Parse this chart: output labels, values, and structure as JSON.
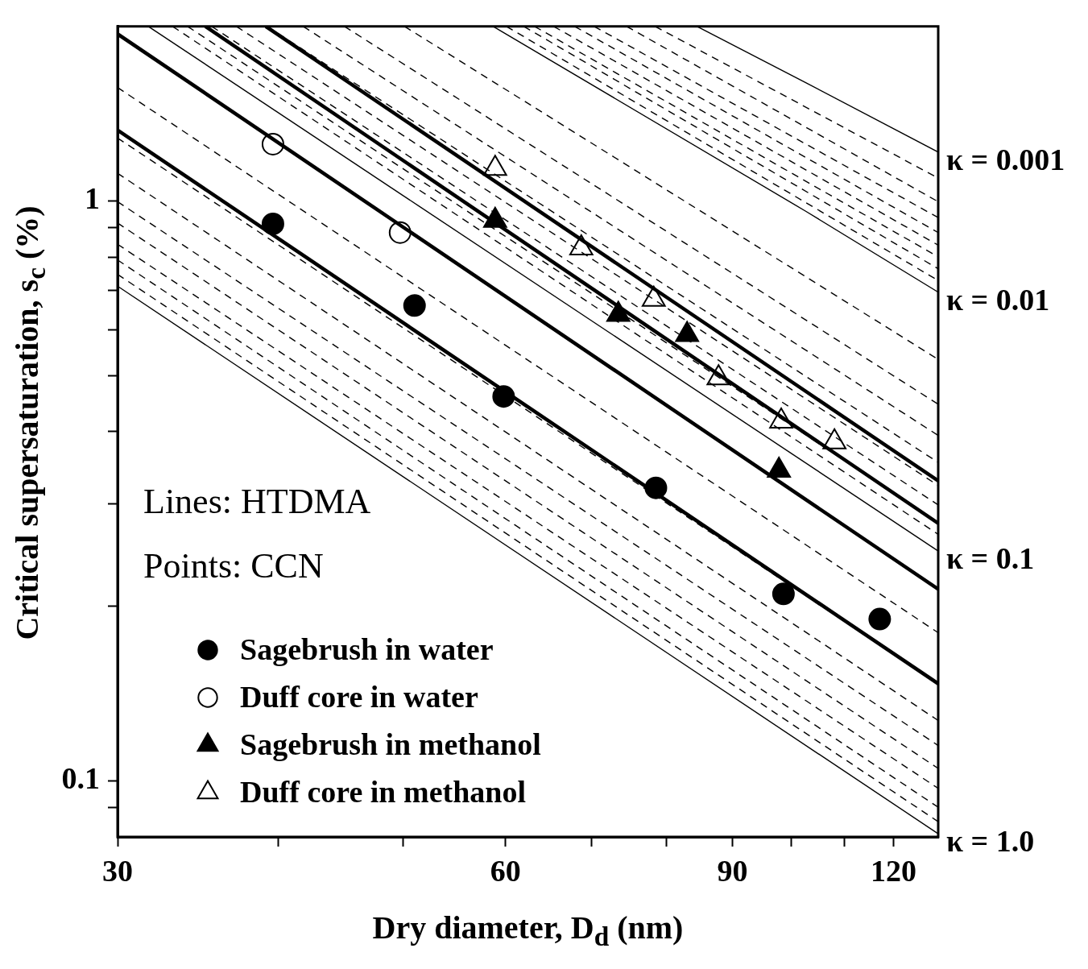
{
  "chart_data": {
    "type": "line",
    "xlabel": "Dry diameter, D$_{d}$ (nm)",
    "ylabel": "Critical supersaturation, s$_{c}$ (%)",
    "annotations": [
      "Lines: HTDMA",
      "Points: CCN"
    ],
    "log": "xy",
    "xlim": [
      30,
      130
    ],
    "ylim": [
      0.08,
      2
    ],
    "xticks": [
      30,
      {
        "value": 40,
        "label": null
      },
      {
        "value": 50,
        "label": null
      },
      60,
      {
        "value": 70,
        "label": null
      },
      {
        "value": 80,
        "label": null
      },
      90,
      {
        "value": 100,
        "label": null
      },
      {
        "value": 110,
        "label": null
      },
      120
    ],
    "yticks": [
      {
        "value": 0.09,
        "label": null
      },
      0.1,
      {
        "value": 0.2,
        "label": null
      },
      {
        "value": 0.3,
        "label": null
      },
      {
        "value": 0.4,
        "label": null
      },
      {
        "value": 0.5,
        "label": null
      },
      {
        "value": 0.6,
        "label": null
      },
      {
        "value": 0.7,
        "label": null
      },
      {
        "value": 0.8,
        "label": null
      },
      {
        "value": 0.9,
        "label": null
      },
      1
    ],
    "legend": "bottom left",
    "marker": "none",
    "series": [
      {
        "type": "line",
        "name": "κ = 0.001",
        "color": "#000000",
        "line_style": "solid",
        "x": [
          84.5,
          102.6,
          130
        ],
        "values": [
          2,
          1.6,
          1.214
        ]
      },
      {
        "type": "line",
        "name": "κ = 0.01",
        "color": "#000000",
        "line_style": "solid",
        "x": [
          58.7,
          102.6,
          130
        ],
        "values": [
          2,
          0.96,
          0.696
        ]
      },
      {
        "type": "line",
        "name": "κ = 0.1",
        "color": "#000000",
        "line_style": "solid",
        "x": [
          31.7,
          130
        ],
        "values": [
          2,
          0.249
        ]
      },
      {
        "type": "line",
        "name": "κ = 1.0",
        "color": "#000000",
        "line_style": "solid",
        "x": [
          30,
          130
        ],
        "values": [
          0.713,
          0.081
        ]
      },
      {
        "type": "line",
        "color": "#000000",
        "line_style": "dashed",
        "x": [
          78.4,
          130
        ],
        "values": [
          2,
          1.095
        ]
      },
      {
        "type": "line",
        "color": "#000000",
        "line_style": "dashed",
        "x": [
          74.5,
          130
        ],
        "values": [
          2,
          0.997
        ]
      },
      {
        "type": "line",
        "color": "#000000",
        "line_style": "dashed",
        "x": [
          70.3,
          130
        ],
        "values": [
          2,
          0.936
        ]
      },
      {
        "type": "line",
        "color": "#000000",
        "line_style": "dashed",
        "x": [
          67.9,
          130
        ],
        "values": [
          2,
          0.882
        ]
      },
      {
        "type": "line",
        "color": "#000000",
        "line_style": "dashed",
        "x": [
          65.4,
          130
        ],
        "values": [
          2,
          0.839
        ]
      },
      {
        "type": "line",
        "color": "#000000",
        "line_style": "dashed",
        "x": [
          63.2,
          130
        ],
        "values": [
          2,
          0.801
        ]
      },
      {
        "type": "line",
        "color": "#000000",
        "line_style": "dashed",
        "x": [
          62,
          130
        ],
        "values": [
          2,
          0.764
        ]
      },
      {
        "type": "line",
        "color": "#000000",
        "line_style": "dashed",
        "x": [
          60.1,
          130
        ],
        "values": [
          2,
          0.729
        ]
      },
      {
        "type": "line",
        "color": "#000000",
        "line_style": "dashed",
        "x": [
          50.1,
          130
        ],
        "values": [
          2,
          0.533
        ]
      },
      {
        "type": "line",
        "color": "#000000",
        "line_style": "dashed",
        "x": [
          45,
          130
        ],
        "values": [
          2,
          0.446
        ]
      },
      {
        "type": "line",
        "color": "#000000",
        "line_style": "dashed",
        "x": [
          41.8,
          130
        ],
        "values": [
          2,
          0.394
        ]
      },
      {
        "type": "line",
        "color": "#000000",
        "line_style": "dashed",
        "x": [
          39.2,
          130
        ],
        "values": [
          2,
          0.354
        ]
      },
      {
        "type": "line",
        "color": "#000000",
        "line_style": "dashed",
        "x": [
          37.1,
          130
        ],
        "values": [
          2,
          0.323
        ]
      },
      {
        "type": "line",
        "color": "#000000",
        "line_style": "dashed",
        "x": [
          35.5,
          130
        ],
        "values": [
          2,
          0.299
        ]
      },
      {
        "type": "line",
        "color": "#000000",
        "line_style": "dashed",
        "x": [
          34,
          130
        ],
        "values": [
          2,
          0.279
        ]
      },
      {
        "type": "line",
        "color": "#000000",
        "line_style": "dashed",
        "x": [
          33.1,
          130
        ],
        "values": [
          2,
          0.266
        ]
      },
      {
        "type": "line",
        "color": "#000000",
        "line_style": "dashed",
        "x": [
          30,
          130
        ],
        "values": [
          1.569,
          0.18
        ]
      },
      {
        "type": "line",
        "color": "#000000",
        "line_style": "dashed",
        "x": [
          30,
          130
        ],
        "values": [
          1.284,
          0.147
        ]
      },
      {
        "type": "line",
        "color": "#000000",
        "line_style": "dashed",
        "x": [
          30,
          130
        ],
        "values": [
          1.116,
          0.127
        ]
      },
      {
        "type": "line",
        "color": "#000000",
        "line_style": "dashed",
        "x": [
          30,
          130
        ],
        "values": [
          0.997,
          0.115
        ]
      },
      {
        "type": "line",
        "color": "#000000",
        "line_style": "dashed",
        "x": [
          30,
          130
        ],
        "values": [
          0.916,
          0.105
        ]
      },
      {
        "type": "line",
        "color": "#000000",
        "line_style": "dashed",
        "x": [
          30,
          130
        ],
        "values": [
          0.842,
          0.097
        ]
      },
      {
        "type": "line",
        "color": "#000000",
        "line_style": "dashed",
        "x": [
          30,
          130
        ],
        "values": [
          0.791,
          0.09
        ]
      },
      {
        "type": "line",
        "color": "#000000",
        "line_style": "dashed",
        "x": [
          30,
          130
        ],
        "values": [
          0.747,
          0.085
        ]
      },
      {
        "type": "line",
        "color": "#000000",
        "line_style": "solid",
        "x": [
          39.1,
          130
        ],
        "values": [
          2,
          0.329
        ]
      },
      {
        "type": "line",
        "color": "#000000",
        "line_style": "solid",
        "x": [
          35.1,
          130
        ],
        "values": [
          2,
          0.278
        ]
      },
      {
        "type": "line",
        "color": "#000000",
        "line_style": "solid",
        "x": [
          30,
          130
        ],
        "values": [
          1.941,
          0.214
        ]
      },
      {
        "type": "line",
        "color": "#000000",
        "line_style": "solid",
        "x": [
          30,
          130
        ],
        "values": [
          1.325,
          0.147
        ]
      },
      {
        "type": "scatter",
        "name": "Sagebrush in water",
        "color": "#000000",
        "marker": "circle",
        "x": [
          39.6,
          51,
          59.8,
          78.5,
          98.6,
          117.1
        ],
        "values": [
          0.913,
          0.66,
          0.46,
          0.32,
          0.21,
          0.19
        ]
      },
      {
        "type": "scatter",
        "name": "Duff core in water",
        "color": "#ffffff",
        "marker": "circle",
        "x": [
          39.6,
          49.7
        ],
        "values": [
          1.253,
          0.882
        ]
      },
      {
        "type": "scatter",
        "name": "Sagebrush in methanol",
        "color": "#000000",
        "marker": "triangle",
        "x": [
          58.9,
          73.4,
          83,
          97.8
        ],
        "values": [
          0.925,
          0.637,
          0.588,
          0.343
        ]
      },
      {
        "type": "scatter",
        "name": "Duff core in methanol",
        "color": "#ffffff",
        "marker": "triangle",
        "x": [
          58.9,
          68.7,
          78.2,
          87.8,
          98.2,
          108
        ],
        "values": [
          1.137,
          0.829,
          0.676,
          0.495,
          0.417,
          0.384
        ]
      }
    ]
  }
}
